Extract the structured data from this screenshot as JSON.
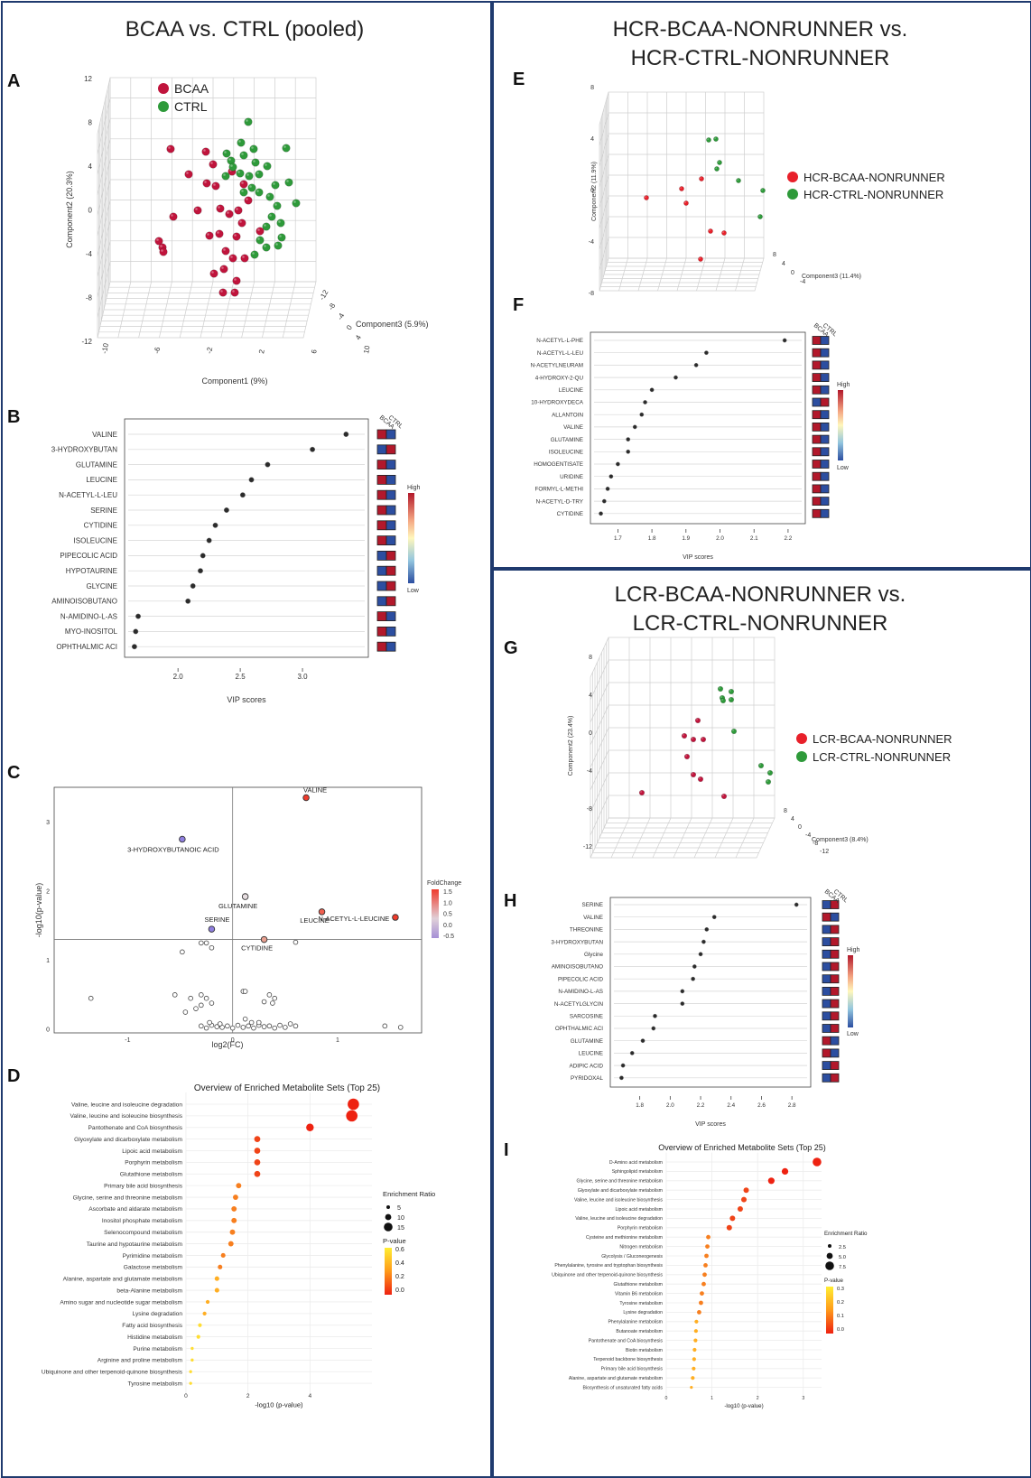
{
  "colors": {
    "bcaa": "#c0143c",
    "ctrl": "#2e9a3a",
    "frame": "#1f3a6e",
    "high": "#b2182b",
    "low": "#2c4ea0"
  },
  "left": {
    "title": "BCAA vs. CTRL (pooled)",
    "A": {
      "letter": "A",
      "legend": [
        "BCAA",
        "CTRL"
      ],
      "xlabel": "Component1 (9%)",
      "ylabel": "Component2 (20.3%)",
      "zlabel": "Component3 (5.9%)",
      "yticks": [
        "12",
        "8",
        "4",
        "0",
        "-4",
        "-8",
        "-12"
      ],
      "xticks": [
        "-10",
        "-6",
        "-2",
        "2",
        "6",
        "10"
      ],
      "zticks": [
        "-12",
        "-8",
        "-4",
        "0",
        "4"
      ]
    },
    "B": {
      "letter": "B",
      "xlabel": "VIP scores",
      "heat_header": [
        "BCAA",
        "CTRL"
      ],
      "legend_high": "High",
      "legend_low": "Low",
      "xmin": 1.6,
      "xmax": 3.5,
      "xticks": [
        "2.0",
        "2.5",
        "3.0"
      ],
      "chart_data": {
        "type": "scatter",
        "xlabel": "VIP scores",
        "labels": [
          "VALINE",
          "3-HYDROXYBUTAN",
          "GLUTAMINE",
          "LEUCINE",
          "N-ACETYL-L-LEU",
          "SERINE",
          "CYTIDINE",
          "ISOLEUCINE",
          "PIPECOLIC ACID",
          "HYPOTAURINE",
          "GLYCINE",
          "AMINOISOBUTANO",
          "N-AMIDINO-L-AS",
          "MYO-INOSITOL",
          "OPHTHALMIC ACI"
        ],
        "values": [
          3.35,
          3.08,
          2.72,
          2.59,
          2.52,
          2.39,
          2.3,
          2.25,
          2.2,
          2.18,
          2.12,
          2.08,
          1.68,
          1.66,
          1.65
        ],
        "bcaa_high": [
          true,
          false,
          true,
          true,
          true,
          true,
          true,
          true,
          false,
          false,
          false,
          false,
          true,
          true,
          true
        ]
      }
    },
    "C": {
      "letter": "C",
      "xlabel": "log2(FC)",
      "ylabel": "-log10(p-value)",
      "legend_title": "FoldChange",
      "legend_ticks": [
        "1.5",
        "1.0",
        "0.5",
        "0.0",
        "-0.5"
      ],
      "xticks": [
        "-1",
        "0",
        "1"
      ],
      "yticks": [
        "0",
        "1",
        "2",
        "3"
      ],
      "chart_data": {
        "type": "scatter",
        "xlim": [
          -1.7,
          1.8
        ],
        "ylim": [
          -0.05,
          3.5
        ],
        "labeled": [
          {
            "label": "VALINE",
            "x": 0.7,
            "y": 3.35,
            "fc": 1.6
          },
          {
            "label": "3-HYDROXYBUTANOIC ACID",
            "x": -0.48,
            "y": 2.75,
            "fc": -0.6
          },
          {
            "label": "GLUTAMINE",
            "x": 0.12,
            "y": 1.92,
            "fc": 0.2
          },
          {
            "label": "LEUCINE",
            "x": 0.85,
            "y": 1.7,
            "fc": 1.2
          },
          {
            "label": "N-ACETYL-L-LEUCINE",
            "x": 1.55,
            "y": 1.62,
            "fc": 1.7
          },
          {
            "label": "SERINE",
            "x": -0.2,
            "y": 1.45,
            "fc": -0.5
          },
          {
            "label": "CYTIDINE",
            "x": 0.3,
            "y": 1.3,
            "fc": 0.7
          }
        ],
        "others": [
          [
            -0.48,
            1.12
          ],
          [
            -0.3,
            1.25
          ],
          [
            -0.25,
            1.25
          ],
          [
            -0.2,
            1.18
          ],
          [
            0.6,
            1.26
          ],
          [
            -1.35,
            0.45
          ],
          [
            -0.55,
            0.5
          ],
          [
            -0.4,
            0.45
          ],
          [
            -0.3,
            0.5
          ],
          [
            -0.25,
            0.45
          ],
          [
            -0.3,
            0.35
          ],
          [
            -0.2,
            0.38
          ],
          [
            -0.35,
            0.3
          ],
          [
            -0.45,
            0.25
          ],
          [
            0.1,
            0.55
          ],
          [
            0.12,
            0.55
          ],
          [
            0.35,
            0.5
          ],
          [
            0.4,
            0.45
          ],
          [
            0.38,
            0.38
          ],
          [
            0.3,
            0.4
          ],
          [
            -0.3,
            0.05
          ],
          [
            -0.25,
            0.02
          ],
          [
            -0.2,
            0.06
          ],
          [
            -0.15,
            0.04
          ],
          [
            -0.1,
            0.03
          ],
          [
            -0.05,
            0.05
          ],
          [
            0.0,
            0.02
          ],
          [
            0.05,
            0.06
          ],
          [
            0.1,
            0.03
          ],
          [
            0.15,
            0.05
          ],
          [
            0.2,
            0.02
          ],
          [
            0.25,
            0.06
          ],
          [
            0.3,
            0.04
          ],
          [
            0.35,
            0.05
          ],
          [
            0.4,
            0.02
          ],
          [
            0.45,
            0.06
          ],
          [
            0.5,
            0.03
          ],
          [
            0.6,
            0.05
          ],
          [
            -0.22,
            0.1
          ],
          [
            -0.12,
            0.08
          ],
          [
            0.18,
            0.1
          ],
          [
            0.25,
            0.1
          ],
          [
            0.55,
            0.08
          ],
          [
            1.45,
            0.05
          ],
          [
            1.6,
            0.03
          ],
          [
            0.12,
            0.15
          ]
        ]
      }
    },
    "D": {
      "letter": "D",
      "title": "Overview of Enriched Metabolite Sets (Top 25)",
      "xlabel": "-log10 (p-value)",
      "xticks": [
        "0",
        "2",
        "4"
      ],
      "xmax": 6,
      "size_title": "Enrichment Ratio",
      "size_labels": [
        "5",
        "10",
        "15"
      ],
      "p_title": "P-value",
      "p_labels": [
        "0.6",
        "0.4",
        "0.2",
        "0.0"
      ],
      "chart_data": {
        "type": "scatter",
        "labels": [
          "Valine, leucine and isoleucine degradation",
          "Valine, leucine and isoleucine biosynthesis",
          "Pantothenate and CoA biosynthesis",
          "Glyoxylate and dicarboxylate metabolism",
          "Lipoic acid metabolism",
          "Porphyrin metabolism",
          "Glutathione metabolism",
          "Primary bile acid biosynthesis",
          "Glycine, serine and threonine metabolism",
          "Ascorbate and aldarate metabolism",
          "Inositol phosphate metabolism",
          "Selenocompound metabolism",
          "Taurine and hypotaurine metabolism",
          "Pyrimidine metabolism",
          "Galactose metabolism",
          "Alanine, aspartate and glutamate metabolism",
          "beta-Alanine metabolism",
          "Amino sugar and nucleotide sugar metabolism",
          "Lysine degradation",
          "Fatty acid biosynthesis",
          "Histidine metabolism",
          "Purine metabolism",
          "Arginine and proline metabolism",
          "Ubiquinone and other terpenoid-quinone biosynthesis",
          "Tyrosine metabolism"
        ],
        "values": [
          5.4,
          5.35,
          4.0,
          2.3,
          2.3,
          2.3,
          2.3,
          1.7,
          1.6,
          1.55,
          1.55,
          1.5,
          1.45,
          1.2,
          1.1,
          1.0,
          1.0,
          0.7,
          0.6,
          0.45,
          0.4,
          0.2,
          0.2,
          0.15,
          0.15
        ],
        "sizes": [
          15,
          15,
          10,
          8,
          8,
          8,
          8,
          7,
          7,
          7,
          7,
          7,
          7,
          6,
          6,
          6,
          6,
          5,
          5,
          5,
          5,
          4,
          4,
          4,
          4
        ]
      }
    }
  },
  "right_top": {
    "title_line1": "HCR-BCAA-NONRUNNER vs.",
    "title_line2": "HCR-CTRL-NONRUNNER",
    "E": {
      "letter": "E",
      "legend": [
        "HCR-BCAA-NONRUNNER",
        "HCR-CTRL-NONRUNNER"
      ],
      "ylabel": "Component2 (11.9%)",
      "zlabel": "Component3 (11.4%)",
      "yticks": [
        "8",
        "4",
        "0",
        "-4",
        "-8"
      ],
      "zticks": [
        "8",
        "4",
        "0",
        "-4"
      ]
    },
    "F": {
      "letter": "F",
      "xlabel": "VIP scores",
      "heat_header": [
        "BCAA",
        "CTRL"
      ],
      "legend_high": "High",
      "legend_low": "Low",
      "xmin": 1.63,
      "xmax": 2.24,
      "xticks": [
        "1.7",
        "1.8",
        "1.9",
        "2.0",
        "2.1",
        "2.2"
      ],
      "chart_data": {
        "type": "scatter",
        "xlabel": "VIP scores",
        "labels": [
          "N-ACETYL-L-PHE",
          "N-ACETYL-L-LEU",
          "N-ACETYLNEURAM",
          "4-HYDROXY-2-QU",
          "LEUCINE",
          "10-HYDROXYDECA",
          "ALLANTOIN",
          "VALINE",
          "GLUTAMINE",
          "ISOLEUCINE",
          "HOMOGENTISATE",
          "URIDINE",
          "FORMYL-L-METHI",
          "N-ACETYL-D-TRY",
          "CYTIDINE"
        ],
        "values": [
          2.19,
          1.96,
          1.93,
          1.87,
          1.8,
          1.78,
          1.77,
          1.75,
          1.73,
          1.73,
          1.7,
          1.68,
          1.67,
          1.66,
          1.65
        ],
        "bcaa_high": [
          true,
          true,
          true,
          true,
          true,
          false,
          true,
          true,
          true,
          true,
          true,
          true,
          true,
          true,
          true
        ]
      }
    }
  },
  "right_bottom": {
    "title_line1": "LCR-BCAA-NONRUNNER vs.",
    "title_line2": "LCR-CTRL-NONRUNNER",
    "G": {
      "letter": "G",
      "legend": [
        "LCR-BCAA-NONRUNNER",
        "LCR-CTRL-NONRUNNER"
      ],
      "ylabel": "Component2 (23.4%)",
      "zlabel": "Component3 (8.4%)",
      "yticks": [
        "8",
        "4",
        "0",
        "-4",
        "-8",
        "-12"
      ],
      "zticks": [
        "8",
        "4",
        "0",
        "-4",
        "-8",
        "-12"
      ]
    },
    "H": {
      "letter": "H",
      "xlabel": "VIP scores",
      "heat_header": [
        "BCAA",
        "CTRL"
      ],
      "legend_high": "High",
      "legend_low": "Low",
      "xmin": 1.63,
      "xmax": 2.9,
      "xticks": [
        "1.8",
        "2.0",
        "2.2",
        "2.4",
        "2.6",
        "2.8"
      ],
      "chart_data": {
        "type": "scatter",
        "xlabel": "VIP scores",
        "labels": [
          "SERINE",
          "VALINE",
          "THREONINE",
          "3-HYDROXYBUTAN",
          "Glycine",
          "AMINOISOBUTANO",
          "PIPECOLIC ACID",
          "N-AMIDINO-L-AS",
          "N-ACETYLGLYCIN",
          "SARCOSINE",
          "OPHTHALMIC ACI",
          "GLUTAMINE",
          "LEUCINE",
          "ADIPIC ACID",
          "PYRIDOXAL"
        ],
        "values": [
          2.83,
          2.29,
          2.24,
          2.22,
          2.2,
          2.16,
          2.15,
          2.08,
          2.08,
          1.9,
          1.89,
          1.82,
          1.75,
          1.69,
          1.68
        ],
        "bcaa_high": [
          false,
          true,
          false,
          false,
          false,
          false,
          false,
          false,
          false,
          false,
          false,
          true,
          true,
          false,
          false
        ]
      }
    },
    "I": {
      "letter": "I",
      "title": "Overview of Enriched Metabolite Sets (Top 25)",
      "xlabel": "-log10 (p-value)",
      "xticks": [
        "0",
        "1",
        "2",
        "3"
      ],
      "xmax": 3.4,
      "size_title": "Enrichment Ratio",
      "size_labels": [
        "2.5",
        "5.0",
        "7.5"
      ],
      "p_title": "P-value",
      "p_labels": [
        "0.3",
        "0.2",
        "0.1",
        "0.0"
      ],
      "chart_data": {
        "type": "scatter",
        "labels": [
          "D-Amino acid metabolism",
          "Sphingolipid metabolism",
          "Glycine, serine and threonine metabolism",
          "Glyoxylate and dicarboxylate metabolism",
          "Valine, leucine and isoleucine biosynthesis",
          "Lipoic acid metabolism",
          "Valine, leucine and isoleucine degradation",
          "Porphyrin metabolism",
          "Cysteine and methionine metabolism",
          "Nitrogen metabolism",
          "Glycolysis / Gluconeogenesis",
          "Phenylalanine, tyrosine and tryptophan biosynthesis",
          "Ubiquinone and other terpenoid-quinone biosynthesis",
          "Glutathione metabolism",
          "Vitamin B6 metabolism",
          "Tyrosine metabolism",
          "Lysine degradation",
          "Phenylalanine metabolism",
          "Butanoate metabolism",
          "Pantothenate and CoA biosynthesis",
          "Biotin metabolism",
          "Terpenoid backbone biosynthesis",
          "Primary bile acid biosynthesis",
          "Alanine, aspartate and glutamate metabolism",
          "Biosynthesis of unsaturated fatty acids"
        ],
        "values": [
          3.3,
          2.6,
          2.3,
          1.75,
          1.7,
          1.62,
          1.45,
          1.38,
          0.92,
          0.9,
          0.88,
          0.86,
          0.84,
          0.82,
          0.78,
          0.76,
          0.72,
          0.66,
          0.65,
          0.64,
          0.62,
          0.61,
          0.6,
          0.58,
          0.55
        ],
        "sizes": [
          8,
          6,
          6,
          5,
          5,
          5,
          5,
          5,
          4,
          4,
          4,
          4,
          4,
          4,
          4,
          4,
          4,
          3.5,
          3.5,
          3.5,
          3.5,
          3.5,
          3.5,
          3.5,
          2.5
        ]
      }
    }
  }
}
